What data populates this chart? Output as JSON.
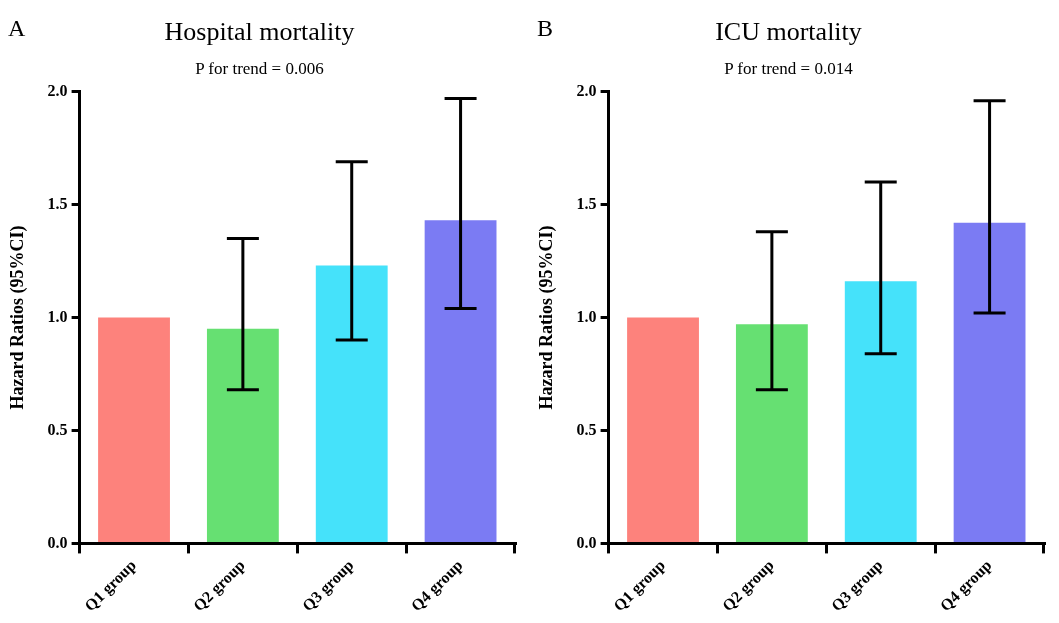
{
  "chart_data": [
    {
      "type": "bar",
      "title": "Hospital mortality",
      "subtitle": "P for trend = 0.006",
      "ylabel": "Hazard Ratios (95%CI)",
      "annotations": [
        "A"
      ],
      "categories": [
        "Q1 group",
        "Q2 group",
        "Q3 group",
        "Q4 group"
      ],
      "values": [
        1.0,
        0.95,
        1.23,
        1.43
      ],
      "errors": [
        null,
        [
          0.68,
          1.35
        ],
        [
          0.9,
          1.69
        ],
        [
          1.04,
          1.97
        ]
      ],
      "colors": [
        "#fd827c",
        "#66e072",
        "#45e2fa",
        "#7b7bf3"
      ],
      "ylim": [
        0,
        2
      ],
      "yticks": [
        {
          "value": 0,
          "label": "0.0"
        },
        {
          "value": 0.5,
          "label": "0.5"
        },
        {
          "value": 1,
          "label": "1.0"
        },
        {
          "value": 1.5,
          "label": "1.5"
        },
        {
          "value": 2,
          "label": "2.0"
        }
      ],
      "grid": false,
      "legend": false
    },
    {
      "type": "bar",
      "title": "ICU mortality",
      "subtitle": "P for trend = 0.014",
      "ylabel": "Hazard Ratios (95%CI)",
      "annotations": [
        "B"
      ],
      "categories": [
        "Q1 group",
        "Q2 group",
        "Q3 group",
        "Q4 group"
      ],
      "values": [
        1.0,
        0.97,
        1.16,
        1.42
      ],
      "errors": [
        null,
        [
          0.68,
          1.38
        ],
        [
          0.84,
          1.6
        ],
        [
          1.02,
          1.96
        ]
      ],
      "colors": [
        "#fd827c",
        "#66e072",
        "#45e2fa",
        "#7b7bf3"
      ],
      "ylim": [
        0,
        2
      ],
      "yticks": [
        {
          "value": 0,
          "label": "0.0"
        },
        {
          "value": 0.5,
          "label": "0.5"
        },
        {
          "value": 1,
          "label": "1.0"
        },
        {
          "value": 1.5,
          "label": "1.5"
        },
        {
          "value": 2,
          "label": "2.0"
        }
      ],
      "grid": false,
      "legend": false
    }
  ]
}
